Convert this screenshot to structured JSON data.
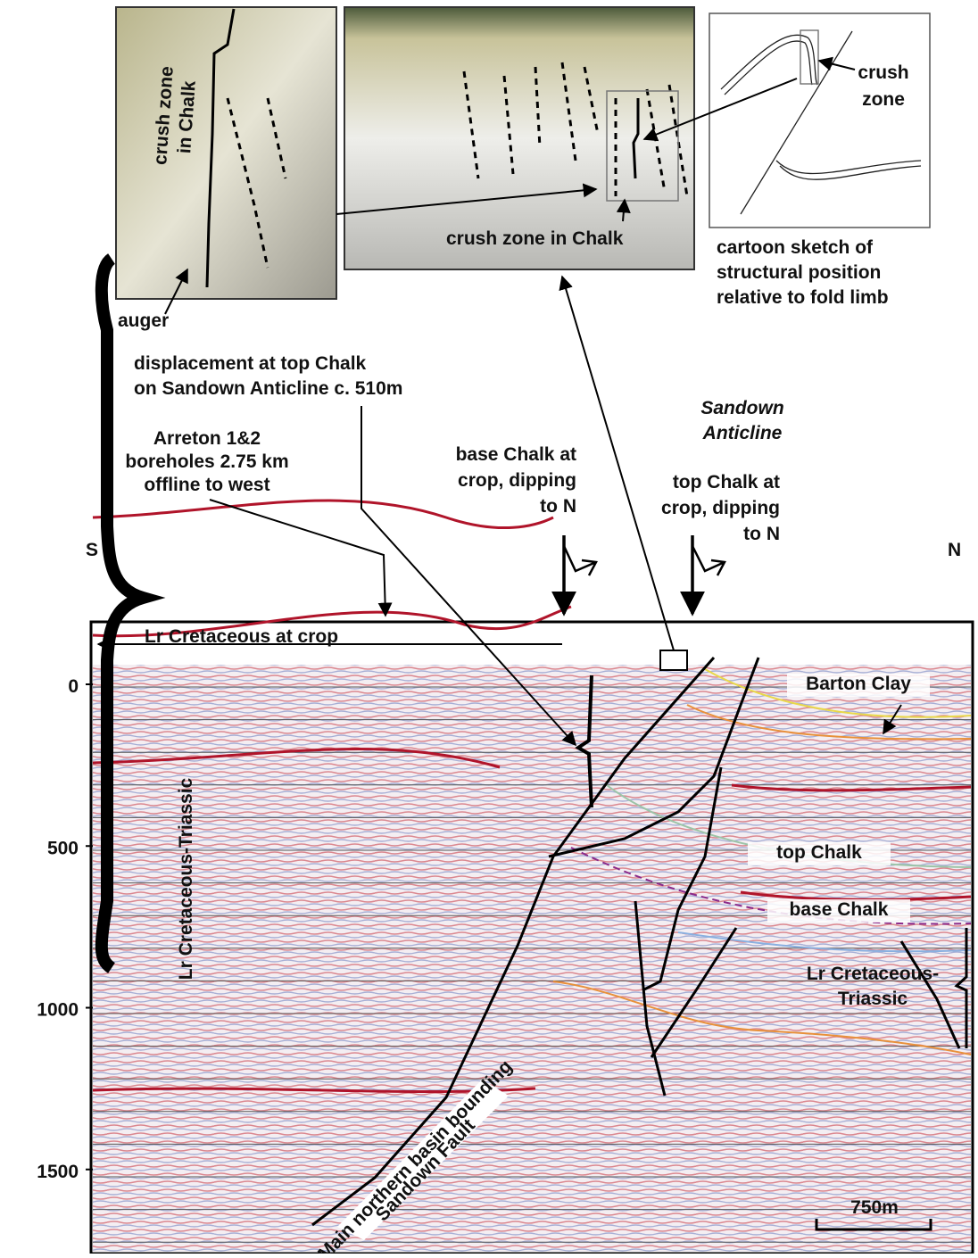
{
  "photo_left": {
    "label": [
      "crush zone",
      "in Chalk"
    ],
    "auger": "auger"
  },
  "photo_middle": {
    "label": "crush zone in Chalk"
  },
  "cartoon": {
    "label": [
      "crush",
      "zone"
    ],
    "caption": [
      "cartoon sketch of",
      "structural position",
      "relative to fold limb"
    ]
  },
  "annotations": {
    "displacement": [
      "displacement at top Chalk",
      "on Sandown Anticline c. 510m"
    ],
    "sandown": [
      "Sandown",
      "Anticline"
    ],
    "arreton": [
      "Arreton 1&2",
      "boreholes 2.75 km",
      "offline to west"
    ],
    "base_chalk_crop": [
      "base Chalk at",
      "crop, dipping",
      "to N"
    ],
    "top_chalk_crop": [
      "top Chalk at",
      "crop, dipping",
      "to N"
    ]
  },
  "section": {
    "south": "S",
    "north": "N",
    "lr_cret_crop": "Lr Cretaceous at crop",
    "left_unit": "Lr Cretaceous-Triassic",
    "horizons": [
      "Barton Clay",
      "top Chalk",
      "base Chalk"
    ],
    "right_unit": [
      "Lr Cretaceous-",
      "Triassic"
    ],
    "fault": [
      "Main northern basin bounding",
      "Sandown Fault"
    ],
    "scale": "750m",
    "depth_ticks": [
      0,
      500,
      1000,
      1500
    ]
  }
}
